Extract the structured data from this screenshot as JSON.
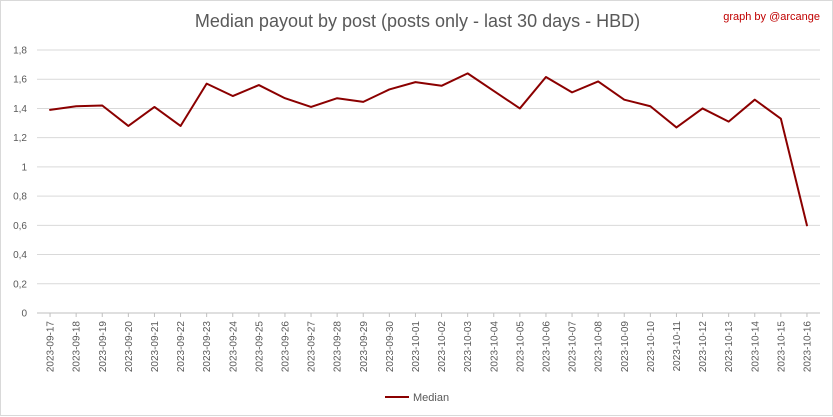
{
  "chart_data": {
    "type": "line",
    "title": "Median payout by post (posts only - last 30 days - HBD)",
    "credit": "graph by @arcange",
    "xlabel": "",
    "ylabel": "",
    "ylim": [
      0,
      1.8
    ],
    "yticks": [
      "0",
      "0,2",
      "0,4",
      "0,6",
      "0,8",
      "1",
      "1,2",
      "1,4",
      "1,6",
      "1,8"
    ],
    "ytick_values": [
      0,
      0.2,
      0.4,
      0.6,
      0.8,
      1.0,
      1.2,
      1.4,
      1.6,
      1.8
    ],
    "grid": true,
    "legend_position": "bottom",
    "line_color": "#8b0000",
    "categories": [
      "2023-09-17",
      "2023-09-18",
      "2023-09-19",
      "2023-09-20",
      "2023-09-21",
      "2023-09-22",
      "2023-09-23",
      "2023-09-24",
      "2023-09-25",
      "2023-09-26",
      "2023-09-27",
      "2023-09-28",
      "2023-09-29",
      "2023-09-30",
      "2023-10-01",
      "2023-10-02",
      "2023-10-03",
      "2023-10-04",
      "2023-10-05",
      "2023-10-06",
      "2023-10-07",
      "2023-10-08",
      "2023-10-09",
      "2023-10-10",
      "2023-10-11",
      "2023-10-12",
      "2023-10-13",
      "2023-10-14",
      "2023-10-15",
      "2023-10-16"
    ],
    "series": [
      {
        "name": "Median",
        "values": [
          1.39,
          1.415,
          1.42,
          1.28,
          1.41,
          1.28,
          1.57,
          1.485,
          1.56,
          1.47,
          1.41,
          1.47,
          1.445,
          1.53,
          1.58,
          1.555,
          1.64,
          1.52,
          1.4,
          1.615,
          1.51,
          1.585,
          1.46,
          1.415,
          1.27,
          1.4,
          1.31,
          1.46,
          1.33,
          0.6
        ]
      }
    ]
  }
}
